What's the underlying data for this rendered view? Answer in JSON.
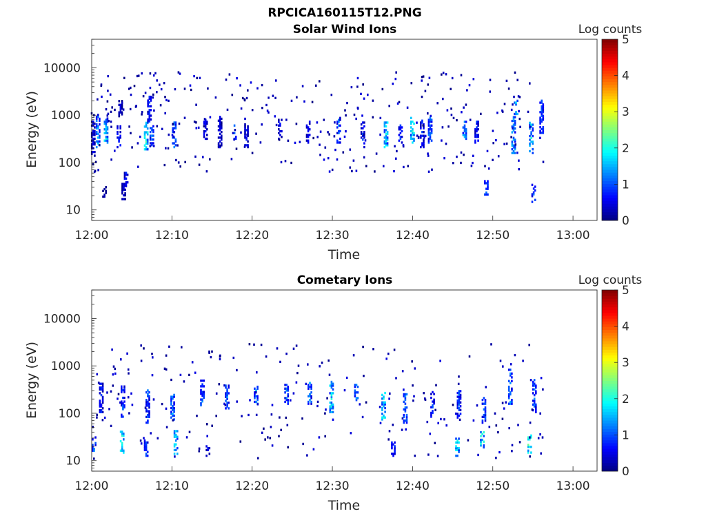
{
  "figure_title": "RPCICA160115T12.PNG",
  "colorbar": {
    "label": "Log counts",
    "range": [
      0,
      5
    ],
    "ticks": [
      "0",
      "1",
      "2",
      "3",
      "4",
      "5"
    ],
    "colormap": "jet"
  },
  "chart_data": [
    {
      "type": "heatmap",
      "title": "Solar Wind Ions",
      "xlabel": "Time",
      "ylabel": "Energy (eV)",
      "yscale": "log",
      "ylim": [
        6,
        40000
      ],
      "xlim": [
        "12:00",
        "13:03"
      ],
      "x_ticks": [
        "12:00",
        "12:10",
        "12:20",
        "12:30",
        "12:40",
        "12:50",
        "13:00"
      ],
      "y_ticks": [
        "10",
        "100",
        "1000",
        "10000"
      ],
      "grid": false,
      "colorbar_label": "Log counts",
      "color_range": [
        0,
        5
      ],
      "data_extent_minutes": [
        0,
        56.5
      ],
      "events": [
        {
          "t": 0.2,
          "e_lo": 120,
          "e_hi": 700,
          "level": 0.6
        },
        {
          "t": 0.8,
          "e_lo": 200,
          "e_hi": 900,
          "level": 1.5
        },
        {
          "t": 1.6,
          "e_lo": 18,
          "e_hi": 30,
          "level": 0.3
        },
        {
          "t": 1.8,
          "e_lo": 250,
          "e_hi": 800,
          "level": 1.8
        },
        {
          "t": 3.4,
          "e_lo": 200,
          "e_hi": 600,
          "level": 1.0
        },
        {
          "t": 3.6,
          "e_lo": 900,
          "e_hi": 2000,
          "level": 0.5
        },
        {
          "t": 4.0,
          "e_lo": 16,
          "e_hi": 40,
          "level": 0.6
        },
        {
          "t": 4.3,
          "e_lo": 30,
          "e_hi": 60,
          "level": 0.8
        },
        {
          "t": 6.8,
          "e_lo": 180,
          "e_hi": 700,
          "level": 2.0
        },
        {
          "t": 7.2,
          "e_lo": 700,
          "e_hi": 2500,
          "level": 0.8
        },
        {
          "t": 7.5,
          "e_lo": 220,
          "e_hi": 600,
          "level": 1.2
        },
        {
          "t": 10.3,
          "e_lo": 200,
          "e_hi": 700,
          "level": 1.3
        },
        {
          "t": 14.2,
          "e_lo": 300,
          "e_hi": 800,
          "level": 0.8
        },
        {
          "t": 16.0,
          "e_lo": 200,
          "e_hi": 900,
          "level": 0.6
        },
        {
          "t": 17.8,
          "e_lo": 250,
          "e_hi": 600,
          "level": 1.0
        },
        {
          "t": 19.3,
          "e_lo": 200,
          "e_hi": 800,
          "level": 0.7
        },
        {
          "t": 23.5,
          "e_lo": 300,
          "e_hi": 800,
          "level": 0.7
        },
        {
          "t": 27.0,
          "e_lo": 250,
          "e_hi": 700,
          "level": 0.8
        },
        {
          "t": 30.8,
          "e_lo": 250,
          "e_hi": 900,
          "level": 1.2
        },
        {
          "t": 33.8,
          "e_lo": 200,
          "e_hi": 700,
          "level": 0.9
        },
        {
          "t": 36.7,
          "e_lo": 200,
          "e_hi": 700,
          "level": 1.9
        },
        {
          "t": 38.5,
          "e_lo": 250,
          "e_hi": 600,
          "level": 1.0
        },
        {
          "t": 40.0,
          "e_lo": 250,
          "e_hi": 900,
          "level": 2.0
        },
        {
          "t": 41.2,
          "e_lo": 200,
          "e_hi": 800,
          "level": 0.9
        },
        {
          "t": 42.2,
          "e_lo": 250,
          "e_hi": 900,
          "level": 1.3
        },
        {
          "t": 46.5,
          "e_lo": 300,
          "e_hi": 800,
          "level": 1.6
        },
        {
          "t": 48.0,
          "e_lo": 250,
          "e_hi": 700,
          "level": 0.9
        },
        {
          "t": 49.2,
          "e_lo": 20,
          "e_hi": 40,
          "level": 1.2
        },
        {
          "t": 52.6,
          "e_lo": 150,
          "e_hi": 900,
          "level": 1.6
        },
        {
          "t": 52.9,
          "e_lo": 1000,
          "e_hi": 2000,
          "level": 1.6
        },
        {
          "t": 54.8,
          "e_lo": 150,
          "e_hi": 700,
          "level": 1.8
        },
        {
          "t": 55.1,
          "e_lo": 14,
          "e_hi": 35,
          "level": 1.2
        },
        {
          "t": 56.1,
          "e_lo": 400,
          "e_hi": 2000,
          "level": 1.1
        }
      ],
      "scatter_band": [
        60,
        8000
      ]
    },
    {
      "type": "heatmap",
      "title": "Cometary Ions",
      "xlabel": "Time",
      "ylabel": "Energy (eV)",
      "yscale": "log",
      "ylim": [
        6,
        40000
      ],
      "xlim": [
        "12:00",
        "13:03"
      ],
      "x_ticks": [
        "12:00",
        "12:10",
        "12:20",
        "12:30",
        "12:40",
        "12:50",
        "13:00"
      ],
      "y_ticks": [
        "10",
        "100",
        "1000",
        "10000"
      ],
      "grid": false,
      "colorbar_label": "Log counts",
      "color_range": [
        0,
        5
      ],
      "data_extent_minutes": [
        0,
        56.5
      ],
      "events": [
        {
          "t": 0.3,
          "e_lo": 14,
          "e_hi": 30,
          "level": 1.3
        },
        {
          "t": 1.2,
          "e_lo": 100,
          "e_hi": 400,
          "level": 0.9
        },
        {
          "t": 3.8,
          "e_lo": 14,
          "e_hi": 40,
          "level": 2.2
        },
        {
          "t": 3.9,
          "e_lo": 80,
          "e_hi": 350,
          "level": 1.0
        },
        {
          "t": 6.8,
          "e_lo": 12,
          "e_hi": 25,
          "level": 1.0
        },
        {
          "t": 7.0,
          "e_lo": 60,
          "e_hi": 300,
          "level": 1.1
        },
        {
          "t": 10.1,
          "e_lo": 70,
          "e_hi": 250,
          "level": 1.4
        },
        {
          "t": 10.5,
          "e_lo": 12,
          "e_hi": 40,
          "level": 1.8
        },
        {
          "t": 13.8,
          "e_lo": 140,
          "e_hi": 500,
          "level": 1.2
        },
        {
          "t": 14.5,
          "e_lo": 12,
          "e_hi": 20,
          "level": 0.7
        },
        {
          "t": 16.9,
          "e_lo": 120,
          "e_hi": 400,
          "level": 1.3
        },
        {
          "t": 20.5,
          "e_lo": 150,
          "e_hi": 400,
          "level": 1.4
        },
        {
          "t": 24.3,
          "e_lo": 150,
          "e_hi": 400,
          "level": 1.2
        },
        {
          "t": 27.2,
          "e_lo": 150,
          "e_hi": 450,
          "level": 1.3
        },
        {
          "t": 29.9,
          "e_lo": 100,
          "e_hi": 450,
          "level": 1.8
        },
        {
          "t": 33.0,
          "e_lo": 180,
          "e_hi": 400,
          "level": 1.4
        },
        {
          "t": 36.4,
          "e_lo": 70,
          "e_hi": 300,
          "level": 1.9
        },
        {
          "t": 37.6,
          "e_lo": 12,
          "e_hi": 25,
          "level": 1.0
        },
        {
          "t": 39.1,
          "e_lo": 60,
          "e_hi": 250,
          "level": 1.3
        },
        {
          "t": 42.5,
          "e_lo": 80,
          "e_hi": 300,
          "level": 1.0
        },
        {
          "t": 45.6,
          "e_lo": 12,
          "e_hi": 30,
          "level": 1.9
        },
        {
          "t": 45.8,
          "e_lo": 70,
          "e_hi": 300,
          "level": 1.1
        },
        {
          "t": 48.7,
          "e_lo": 18,
          "e_hi": 40,
          "level": 2.1
        },
        {
          "t": 48.9,
          "e_lo": 60,
          "e_hi": 200,
          "level": 1.2
        },
        {
          "t": 52.2,
          "e_lo": 150,
          "e_hi": 800,
          "level": 1.3
        },
        {
          "t": 54.6,
          "e_lo": 14,
          "e_hi": 35,
          "level": 2.6
        },
        {
          "t": 55.2,
          "e_lo": 100,
          "e_hi": 500,
          "level": 1.2
        }
      ],
      "scatter_band": [
        10,
        3000
      ]
    }
  ]
}
